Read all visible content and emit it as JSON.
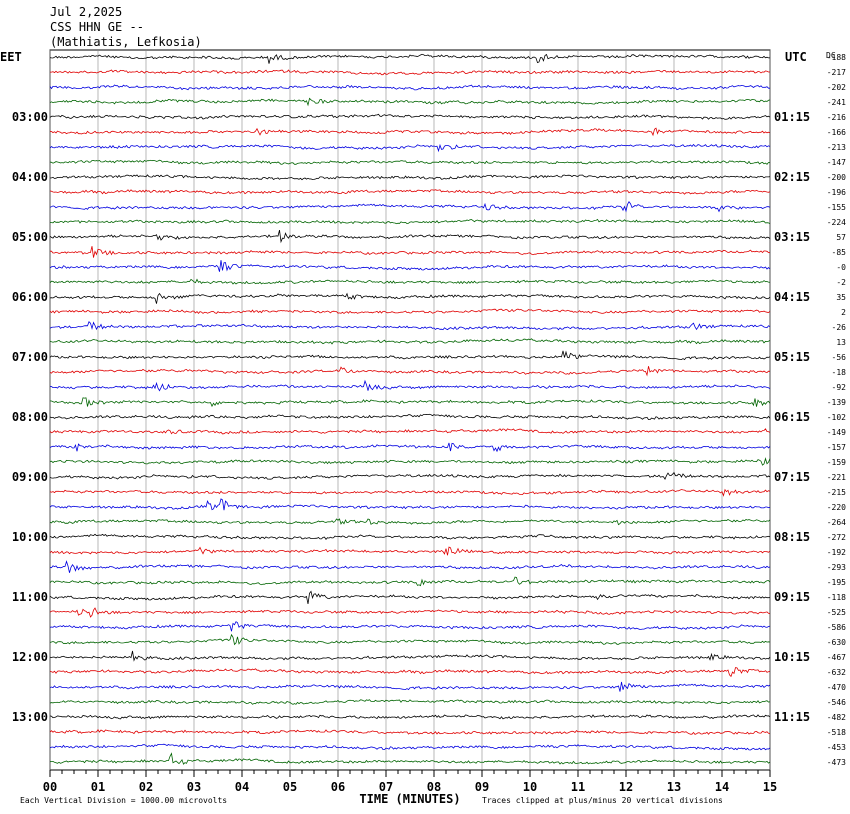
{
  "header": {
    "date": "Jul 2,2025",
    "station": "CSS HHN GE --",
    "location": "(Mathiatis, Lefkosia)"
  },
  "left_zone": "EET",
  "right_zone": "UTC",
  "dc_label": "DC",
  "left_labels": [
    "03:00",
    "04:00",
    "05:00",
    "06:00",
    "07:00",
    "08:00",
    "09:00",
    "10:00",
    "11:00",
    "12:00",
    "13:00"
  ],
  "right_labels": [
    "01:15",
    "02:15",
    "03:15",
    "04:15",
    "05:15",
    "06:15",
    "07:15",
    "08:15",
    "09:15",
    "10:15",
    "11:15"
  ],
  "dc_offsets": [
    "-188",
    "-217",
    "-202",
    "-241",
    "-216",
    "-166",
    "-213",
    "-147",
    "-200",
    "-196",
    "-155",
    "-224",
    "57",
    "-85",
    "-0",
    "-2",
    "35",
    "2",
    "-26",
    "13",
    "-56",
    "-18",
    "-92",
    "-139",
    "-102",
    "-149",
    "-157",
    "-159",
    "-221",
    "-215",
    "-220",
    "-264",
    "-272",
    "-192",
    "-293",
    "-195",
    "-118",
    "-525",
    "-586",
    "-630",
    "-467",
    "-632",
    "-470",
    "-546",
    "-482",
    "-518",
    "-453",
    "-473"
  ],
  "x_ticks": [
    "00",
    "01",
    "02",
    "03",
    "04",
    "05",
    "06",
    "07",
    "08",
    "09",
    "10",
    "11",
    "12",
    "13",
    "14",
    "15"
  ],
  "x_axis_label": "TIME (MINUTES)",
  "scale_note": "Each Vertical Division = 1000.00 microvolts",
  "clip_note": "Traces clipped at plus/minus 20 vertical divisions",
  "trace_colors": [
    "#000000",
    "#e00000",
    "#0000e0",
    "#006400"
  ]
}
